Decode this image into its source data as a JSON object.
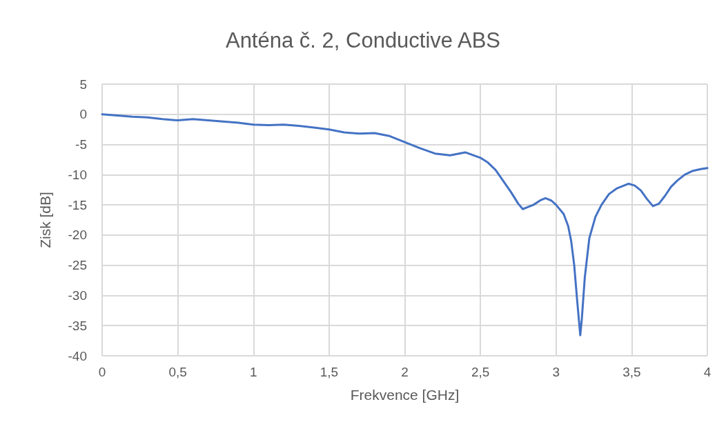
{
  "chart_data": {
    "type": "line",
    "title": "Anténa č. 2, Conductive ABS",
    "xlabel": "Frekvence [GHz]",
    "ylabel": "Zisk [dB]",
    "series": [
      {
        "color": "#4472c4",
        "x": [
          0,
          0.1,
          0.2,
          0.3,
          0.4,
          0.5,
          0.6,
          0.7,
          0.8,
          0.9,
          1.0,
          1.1,
          1.2,
          1.3,
          1.4,
          1.5,
          1.6,
          1.7,
          1.8,
          1.9,
          2.0,
          2.1,
          2.2,
          2.3,
          2.4,
          2.5,
          2.55,
          2.6,
          2.65,
          2.7,
          2.75,
          2.78,
          2.85,
          2.9,
          2.93,
          2.97,
          3.0,
          3.05,
          3.08,
          3.1,
          3.12,
          3.14,
          3.16,
          3.17,
          3.19,
          3.22,
          3.26,
          3.3,
          3.35,
          3.4,
          3.48,
          3.52,
          3.56,
          3.6,
          3.64,
          3.68,
          3.72,
          3.76,
          3.8,
          3.85,
          3.9,
          3.95,
          4.0
        ],
        "values": [
          0,
          -0.2,
          -0.4,
          -0.5,
          -0.8,
          -1.0,
          -0.8,
          -1.0,
          -1.2,
          -1.4,
          -1.7,
          -1.8,
          -1.7,
          -1.9,
          -2.2,
          -2.5,
          -3.0,
          -3.2,
          -3.1,
          -3.6,
          -4.6,
          -5.6,
          -6.5,
          -6.8,
          -6.3,
          -7.2,
          -8.0,
          -9.2,
          -11.0,
          -12.8,
          -14.8,
          -15.7,
          -15.0,
          -14.2,
          -13.9,
          -14.3,
          -15.0,
          -16.5,
          -18.5,
          -21.0,
          -25.0,
          -31.0,
          -36.6,
          -34.0,
          -27.0,
          -20.5,
          -17.0,
          -15.0,
          -13.2,
          -12.3,
          -11.5,
          -11.8,
          -12.6,
          -14.0,
          -15.2,
          -14.8,
          -13.5,
          -12.0,
          -11.0,
          -10.0,
          -9.4,
          -9.1,
          -8.9
        ]
      }
    ],
    "xlim": [
      0,
      4
    ],
    "xticks": [
      0,
      {
        "value": 0.5,
        "label": "0,5"
      },
      1,
      {
        "value": 1.5,
        "label": "1,5"
      },
      2,
      {
        "value": 2.5,
        "label": "2,5"
      },
      3,
      {
        "value": 3.5,
        "label": "3,5"
      },
      4
    ],
    "ylim": [
      -40,
      5
    ],
    "yticks": [
      -40,
      -35,
      -30,
      -25,
      -20,
      -15,
      -10,
      -5,
      0,
      5
    ],
    "grid": true,
    "marker": "none",
    "line_style": "solid"
  }
}
